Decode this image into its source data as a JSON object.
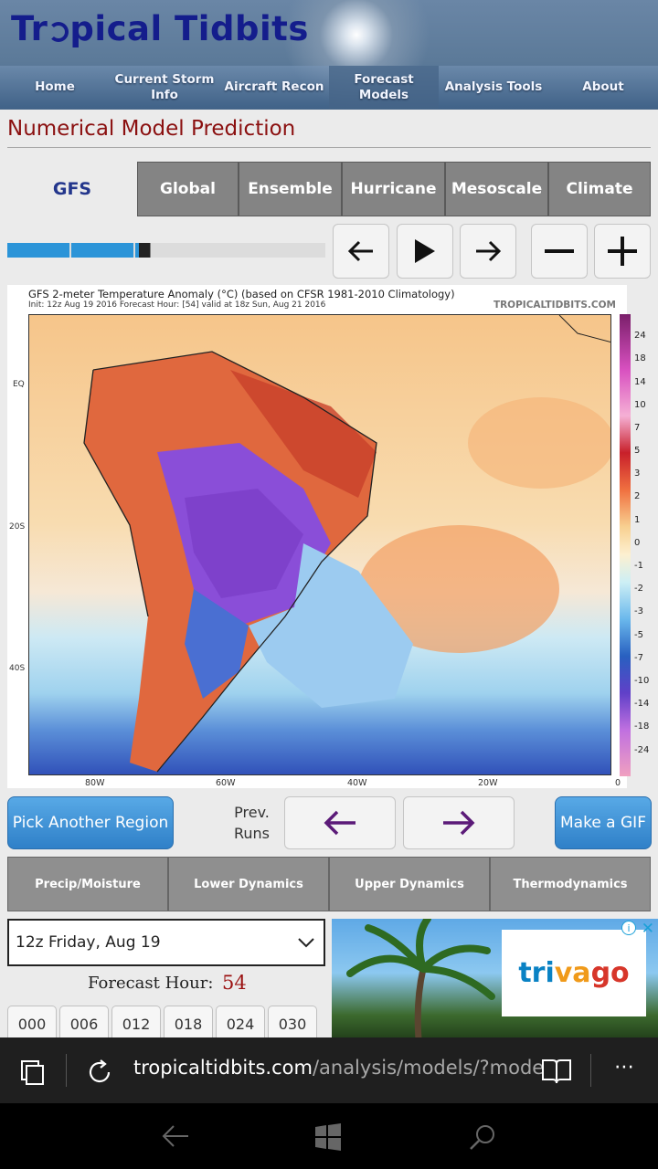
{
  "header": {
    "logo_part1": "Tr",
    "logo_part2": "pical Tidbits",
    "nav": [
      "Home",
      "Current Storm Info",
      "Aircraft Recon",
      "Forecast Models",
      "Analysis Tools",
      "About"
    ]
  },
  "page_title": "Numerical Model Prediction",
  "model_tabs": [
    "GFS",
    "Global",
    "Ensemble",
    "Hurricane",
    "Mesoscale",
    "Climate"
  ],
  "progress": {
    "filled_segments": 2,
    "current_segment": 3,
    "total_segments": 5
  },
  "map": {
    "title": "GFS 2-meter Temperature Anomaly (°C) (based on CFSR 1981-2010 Climatology)",
    "subtitle": "Init: 12z Aug 19 2016   Forecast Hour: [54]   valid at 18z Sun, Aug 21 2016",
    "credit": "TROPICALTIDBITS.COM",
    "lat_labels": [
      "EQ",
      "20S",
      "40S"
    ],
    "lon_labels": [
      "80W",
      "60W",
      "40W",
      "20W",
      "0"
    ],
    "colorbar_labels": [
      "24",
      "18",
      "14",
      "10",
      "7",
      "5",
      "3",
      "2",
      "1",
      "0",
      "-1",
      "-2",
      "-3",
      "-5",
      "-7",
      "-10",
      "-14",
      "-18",
      "-24"
    ]
  },
  "actions": {
    "pick_region": "Pick Another Region",
    "prev_runs": [
      "Prev.",
      "Runs"
    ],
    "make_gif": "Make a GIF"
  },
  "categories": [
    "Precip/Moisture",
    "Lower Dynamics",
    "Upper Dynamics",
    "Thermodynamics"
  ],
  "run_select": {
    "value": "12z Friday, Aug 19"
  },
  "forecast_hour": {
    "label": "Forecast Hour:",
    "value": "54"
  },
  "hours": [
    "000",
    "006",
    "012",
    "018",
    "024",
    "030"
  ],
  "ad": {
    "brand": "trivago"
  },
  "browser": {
    "domain": "tropicaltidbits.com",
    "path": "/analysis/models/?mode"
  },
  "colors": {
    "accent_blue": "#2f80c8",
    "title_red": "#8b1010",
    "tab_blue": "#23368c"
  }
}
